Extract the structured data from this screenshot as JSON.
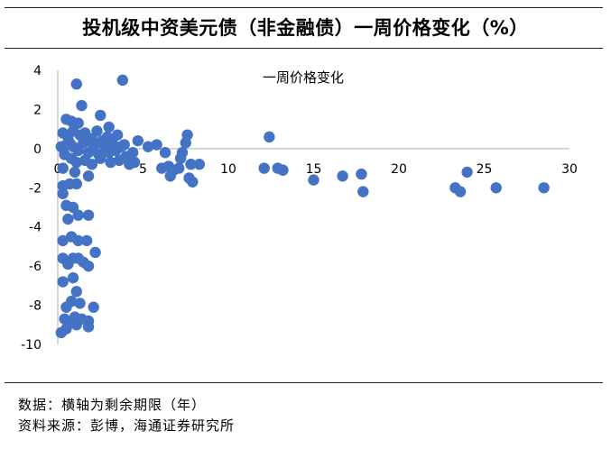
{
  "title": "投机级中资美元债（非金融债）一周价格变化（%）",
  "notes": {
    "data_note": "数据：横轴为剩余期限（年）",
    "source": "资料来源：彭博，海通证券研究所"
  },
  "chart_data": {
    "type": "scatter",
    "title": "",
    "xlabel": "",
    "ylabel": "",
    "xlim": [
      0,
      30
    ],
    "ylim": [
      -10,
      4
    ],
    "x_ticks": [
      0,
      5,
      10,
      15,
      20,
      25,
      30
    ],
    "y_ticks": [
      4,
      2,
      0,
      -2,
      -4,
      -6,
      -8,
      -10
    ],
    "grid": false,
    "marker_color": "#4472C4",
    "legend": "top-center",
    "series": [
      {
        "name": "一周价格变化",
        "points": [
          [
            1.1,
            3.3
          ],
          [
            3.8,
            3.5
          ],
          [
            1.4,
            2.2
          ],
          [
            2.5,
            1.7
          ],
          [
            0.5,
            1.5
          ],
          [
            0.8,
            1.4
          ],
          [
            3.0,
            1.1
          ],
          [
            1.2,
            1.3
          ],
          [
            0.3,
            0.8
          ],
          [
            0.6,
            0.6
          ],
          [
            0.9,
            0.9
          ],
          [
            1.3,
            0.7
          ],
          [
            1.6,
            0.8
          ],
          [
            2.0,
            0.5
          ],
          [
            2.3,
            0.9
          ],
          [
            2.6,
            0.4
          ],
          [
            2.9,
            0.6
          ],
          [
            3.2,
            0.3
          ],
          [
            3.5,
            0.7
          ],
          [
            3.9,
            0.2
          ],
          [
            0.2,
            0.1
          ],
          [
            0.5,
            0.2
          ],
          [
            0.9,
            0.1
          ],
          [
            1.2,
            -0.1
          ],
          [
            1.5,
            0.3
          ],
          [
            1.8,
            -0.2
          ],
          [
            2.1,
            0.1
          ],
          [
            2.4,
            -0.3
          ],
          [
            2.7,
            0.2
          ],
          [
            3.0,
            -0.2
          ],
          [
            3.4,
            -0.1
          ],
          [
            3.7,
            0.1
          ],
          [
            0.4,
            -0.3
          ],
          [
            0.8,
            -0.5
          ],
          [
            1.1,
            -0.7
          ],
          [
            1.6,
            -0.6
          ],
          [
            2.0,
            -0.8
          ],
          [
            2.5,
            -0.5
          ],
          [
            3.1,
            -0.7
          ],
          [
            3.6,
            -0.6
          ],
          [
            4.0,
            -0.4
          ],
          [
            4.4,
            -0.2
          ],
          [
            4.7,
            0.4
          ],
          [
            5.3,
            0.1
          ],
          [
            5.8,
            0.2
          ],
          [
            6.3,
            -0.2
          ],
          [
            4.2,
            -0.8
          ],
          [
            1.8,
            -1.4
          ],
          [
            1.0,
            -1.2
          ],
          [
            0.3,
            -1.0
          ],
          [
            0.7,
            0.3
          ],
          [
            1.9,
            0.4
          ],
          [
            2.8,
            -0.1
          ],
          [
            4.5,
            -0.7
          ],
          [
            7.6,
            0.7
          ],
          [
            7.5,
            0.3
          ],
          [
            7.3,
            -0.2
          ],
          [
            6.5,
            -0.9
          ],
          [
            6.1,
            -1.0
          ],
          [
            6.8,
            -1.1
          ],
          [
            7.2,
            -0.5
          ],
          [
            7.8,
            -0.8
          ],
          [
            8.3,
            -0.8
          ],
          [
            7.9,
            -1.7
          ],
          [
            7.7,
            -1.5
          ],
          [
            6.6,
            -1.4
          ],
          [
            7.1,
            -1.0
          ],
          [
            12.4,
            0.6
          ],
          [
            12.1,
            -1.0
          ],
          [
            12.9,
            -1.0
          ],
          [
            13.2,
            -1.1
          ],
          [
            15.0,
            -1.6
          ],
          [
            16.7,
            -1.4
          ],
          [
            17.8,
            -1.3
          ],
          [
            17.9,
            -2.2
          ],
          [
            23.3,
            -2.0
          ],
          [
            23.6,
            -2.2
          ],
          [
            24.0,
            -1.2
          ],
          [
            25.7,
            -2.0
          ],
          [
            28.5,
            -2.0
          ],
          [
            0.3,
            -1.9
          ],
          [
            0.3,
            -2.3
          ],
          [
            0.7,
            -1.8
          ],
          [
            1.1,
            -1.8
          ],
          [
            0.5,
            -2.9
          ],
          [
            0.9,
            -3.0
          ],
          [
            1.8,
            -3.4
          ],
          [
            0.6,
            -3.6
          ],
          [
            1.2,
            -3.4
          ],
          [
            0.3,
            -4.7
          ],
          [
            0.8,
            -4.5
          ],
          [
            1.2,
            -4.7
          ],
          [
            1.7,
            -4.7
          ],
          [
            2.2,
            -5.3
          ],
          [
            0.3,
            -5.6
          ],
          [
            0.6,
            -5.9
          ],
          [
            0.9,
            -5.6
          ],
          [
            1.2,
            -5.6
          ],
          [
            1.5,
            -5.8
          ],
          [
            1.8,
            -6.0
          ],
          [
            0.3,
            -6.8
          ],
          [
            0.9,
            -6.6
          ],
          [
            1.1,
            -7.3
          ],
          [
            0.5,
            -8.1
          ],
          [
            0.8,
            -7.8
          ],
          [
            1.3,
            -7.9
          ],
          [
            2.1,
            -8.1
          ],
          [
            0.4,
            -8.7
          ],
          [
            1.0,
            -8.6
          ],
          [
            1.4,
            -8.7
          ],
          [
            0.7,
            -8.9
          ],
          [
            1.8,
            -8.8
          ],
          [
            0.2,
            -9.4
          ],
          [
            0.5,
            -9.2
          ],
          [
            1.1,
            -9.0
          ],
          [
            1.8,
            -9.1
          ]
        ]
      }
    ]
  }
}
